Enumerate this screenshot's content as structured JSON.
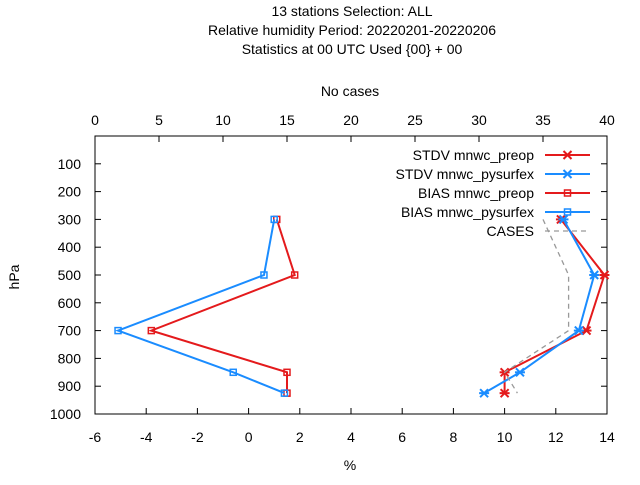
{
  "title_lines": [
    "13 stations Selection: ALL",
    "Relative humidity  Period: 20220201-20220206",
    "Statistics at 00 UTC  Used {00} + 00"
  ],
  "chart_data": {
    "type": "line",
    "xlabel": "%",
    "ylabel": "hPa",
    "x2label": "No cases",
    "xlim": [
      -6,
      14
    ],
    "ylim": [
      1000,
      0
    ],
    "x2lim": [
      0,
      40
    ],
    "x_ticks": [
      "-6",
      "-4",
      "-2",
      "0",
      "2",
      "4",
      "6",
      "8",
      "10",
      "12",
      "14"
    ],
    "x2_ticks": [
      "0",
      "5",
      "10",
      "15",
      "20",
      "25",
      "30",
      "35",
      "40"
    ],
    "y_ticks": [
      "100",
      "200",
      "300",
      "400",
      "500",
      "600",
      "700",
      "800",
      "900",
      "1000"
    ],
    "legend_position": "top-right",
    "series": [
      {
        "name": "STDV mnwc_preop",
        "color": "#e41a1c",
        "marker": "x",
        "points": [
          [
            12.2,
            300
          ],
          [
            13.9,
            500
          ],
          [
            13.2,
            700
          ],
          [
            10.0,
            850
          ],
          [
            10.0,
            925
          ]
        ]
      },
      {
        "name": "STDV mnwc_pysurfex",
        "color": "#1a8cff",
        "marker": "x",
        "points": [
          [
            12.3,
            300
          ],
          [
            13.5,
            500
          ],
          [
            12.9,
            700
          ],
          [
            10.6,
            850
          ],
          [
            9.2,
            925
          ]
        ]
      },
      {
        "name": "BIAS mnwc_preop",
        "color": "#e41a1c",
        "marker": "square",
        "points": [
          [
            1.1,
            300
          ],
          [
            1.8,
            500
          ],
          [
            -3.8,
            700
          ],
          [
            1.5,
            850
          ],
          [
            1.5,
            925
          ]
        ]
      },
      {
        "name": "BIAS mnwc_pysurfex",
        "color": "#1a8cff",
        "marker": "square",
        "points": [
          [
            1.0,
            300
          ],
          [
            0.6,
            500
          ],
          [
            -5.1,
            700
          ],
          [
            -0.6,
            850
          ],
          [
            1.4,
            925
          ]
        ]
      },
      {
        "name": "CASES",
        "color": "#999999",
        "marker": "none",
        "dashed": true,
        "axis": "x2",
        "points": [
          [
            35,
            300
          ],
          [
            37,
            500
          ],
          [
            37,
            700
          ],
          [
            32,
            850
          ],
          [
            33,
            925
          ]
        ]
      }
    ]
  }
}
